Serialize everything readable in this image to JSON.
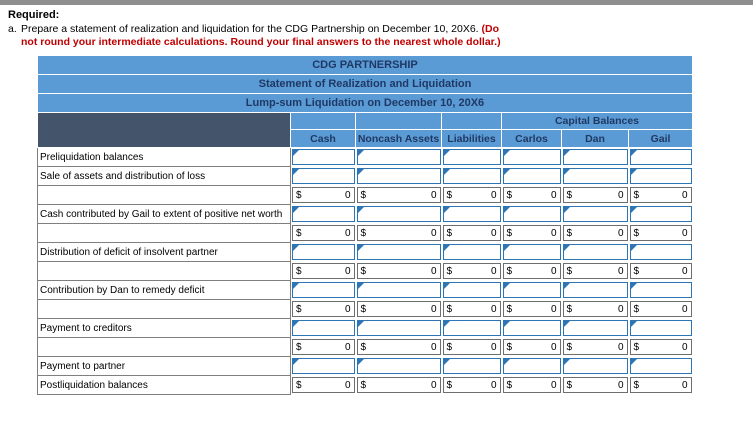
{
  "page": {
    "required_label": "Required:"
  },
  "instruction": {
    "letter": "a.",
    "line1_black": "Prepare a statement of realization and liquidation for the CDG Partnership on December 10, 20X6.",
    "line1_red": "(Do",
    "line2_red": "not round your intermediate calculations. Round your final answers to the nearest whole dollar.)"
  },
  "table": {
    "title_lines": [
      "CDG PARTNERSHIP",
      "Statement of Realization and Liquidation",
      "Lump-sum Liquidation on December 10, 20X6"
    ],
    "capital_balances_label": "Capital Balances",
    "columns": [
      "Cash",
      "Noncash Assets",
      "Liabilities",
      "Carlos",
      "Dan",
      "Gail"
    ],
    "currency_symbol": "$",
    "zero_value": "0",
    "rows": [
      {
        "label": "Preliquidation balances",
        "type": "input"
      },
      {
        "label": "Sale of assets and distribution of loss",
        "type": "input"
      },
      {
        "label": "",
        "type": "total"
      },
      {
        "label": "Cash contributed by Gail to extent of positive net worth",
        "type": "input"
      },
      {
        "label": "",
        "type": "total"
      },
      {
        "label": "Distribution of deficit of insolvent partner",
        "type": "input"
      },
      {
        "label": "",
        "type": "total"
      },
      {
        "label": "Contribution by Dan to remedy deficit",
        "type": "input"
      },
      {
        "label": "",
        "type": "total"
      },
      {
        "label": "Payment to creditors",
        "type": "input"
      },
      {
        "label": "",
        "type": "total"
      },
      {
        "label": "Payment to partner",
        "type": "input"
      },
      {
        "label": "Postliquidation balances",
        "type": "total"
      }
    ]
  },
  "colors": {
    "header_blue": "#5b9bd5",
    "header_dark_corner": "#44546a",
    "header_text": "#1f3864",
    "input_border": "#2e75b6",
    "input_marker": "#2e75b6",
    "grid_border": "#7f7f7f",
    "red_note": "#c00000",
    "top_bar": "#8f8f8f"
  }
}
